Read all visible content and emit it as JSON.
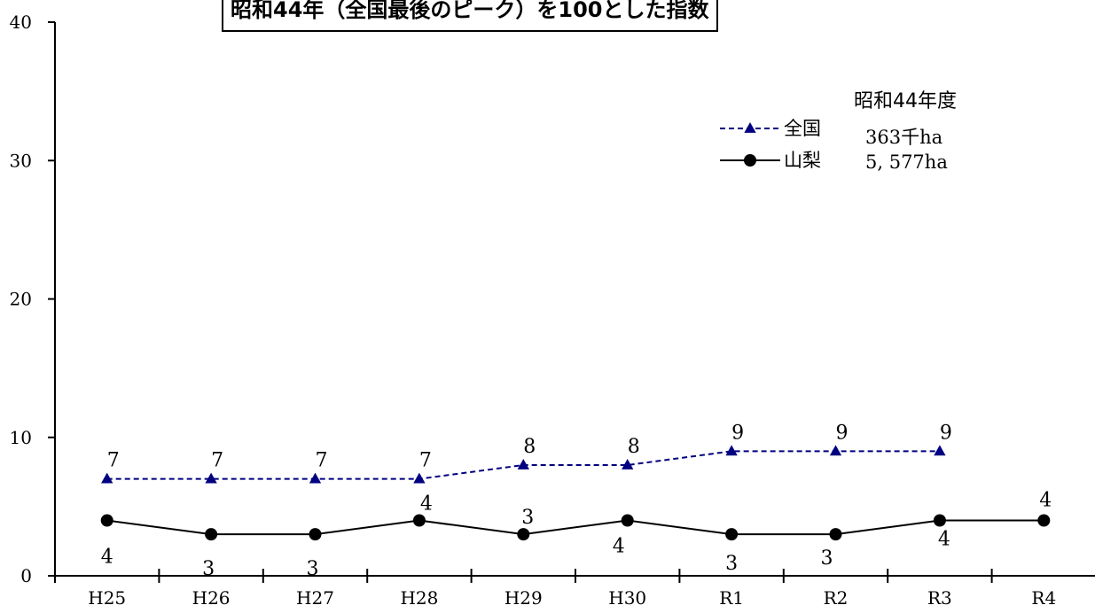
{
  "chart_data": {
    "type": "line",
    "title": "昭和44年（全国最後のピーク）を100とした指数",
    "categories": [
      "H25",
      "H26",
      "H27",
      "H28",
      "H29",
      "H30",
      "R1",
      "R2",
      "R3",
      "R4"
    ],
    "ylim": [
      0,
      40
    ],
    "yticks": [
      "0",
      "10",
      "20",
      "30",
      "40"
    ],
    "grid": false,
    "legend_position": "top-right",
    "base_header": "昭和44年度",
    "series": [
      {
        "name": "全国",
        "base_value": "363千ha",
        "color": "#000080",
        "line_style": "dashed",
        "marker": "triangle",
        "values": [
          7,
          7,
          7,
          7,
          8,
          8,
          9,
          9,
          9,
          null
        ],
        "labels": [
          "7",
          "7",
          "7",
          "7",
          "8",
          "8",
          "9",
          "9",
          "9",
          ""
        ]
      },
      {
        "name": "山梨",
        "base_value": "5, 577ha",
        "color": "#000000",
        "line_style": "solid",
        "marker": "circle",
        "values": [
          4,
          3,
          3,
          4,
          3,
          4,
          3,
          3,
          4,
          4
        ],
        "labels": [
          "4",
          "3",
          "3",
          "4",
          "3",
          "4",
          "3",
          "3",
          "4",
          "4"
        ]
      }
    ]
  }
}
